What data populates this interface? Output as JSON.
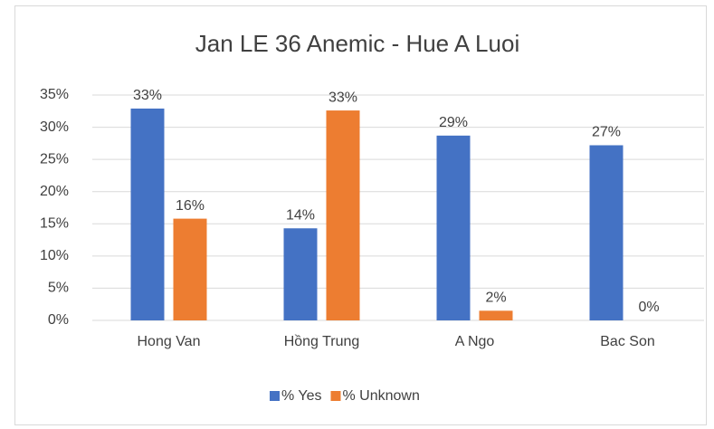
{
  "chart_data": {
    "type": "bar",
    "title": "Jan LE 36 Anemic - Hue A Luoi",
    "categories": [
      "Hong Van",
      "Hồng Trung",
      "A Ngo",
      "Bac Son"
    ],
    "series": [
      {
        "name": "% Yes",
        "color": "#4472c4",
        "values": [
          32.9,
          14.3,
          28.7,
          27.2
        ],
        "value_labels": [
          "33%",
          "14%",
          "29%",
          "27%"
        ]
      },
      {
        "name": "% Unknown",
        "color": "#ed7d31",
        "values": [
          15.8,
          32.6,
          1.5,
          0
        ],
        "value_labels": [
          "16%",
          "33%",
          "2%",
          "0%"
        ]
      }
    ],
    "ylim": [
      0,
      35
    ],
    "yticks": [
      {
        "value": 0,
        "label": "0%"
      },
      {
        "value": 5,
        "label": "5%"
      },
      {
        "value": 10,
        "label": "10%"
      },
      {
        "value": 15,
        "label": "15%"
      },
      {
        "value": 20,
        "label": "20%"
      },
      {
        "value": 25,
        "label": "25%"
      },
      {
        "value": 30,
        "label": "30%"
      },
      {
        "value": 35,
        "label": "35%"
      }
    ],
    "grid": true,
    "legend": "bottom"
  }
}
